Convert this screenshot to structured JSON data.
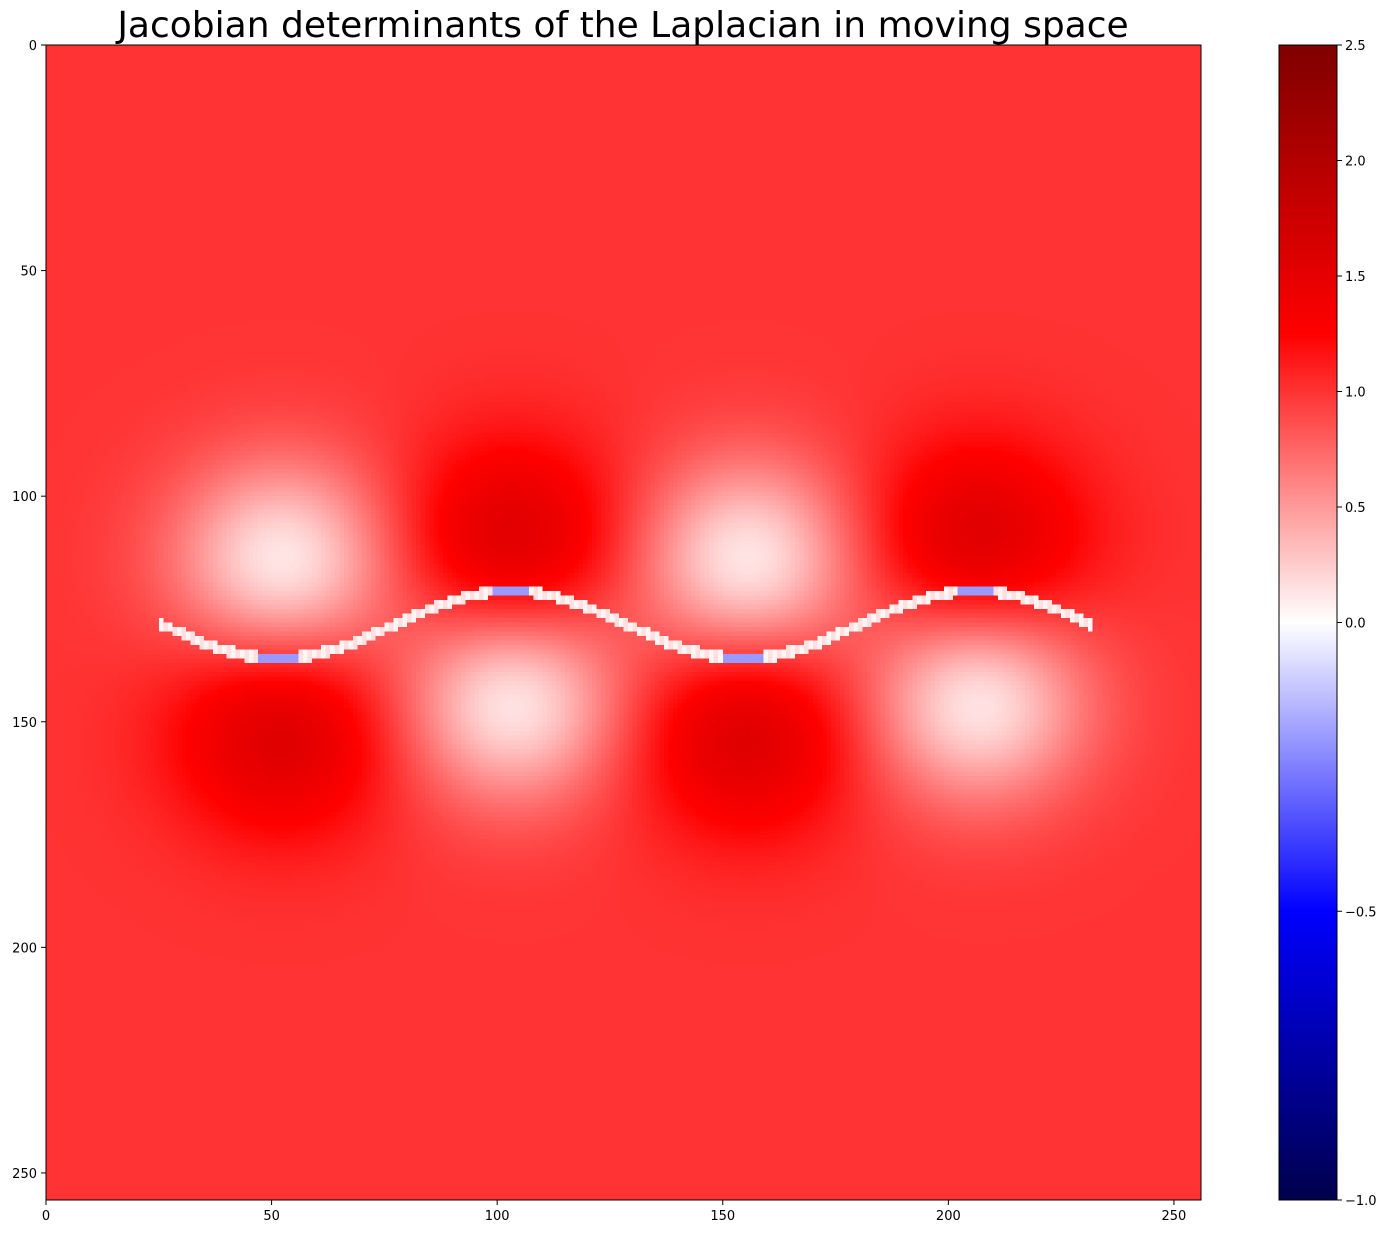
{
  "chart_data": {
    "type": "heatmap",
    "title": "Jacobian determinants of the Laplacian in moving space",
    "xlabel": "",
    "ylabel": "",
    "xlim": [
      0,
      256
    ],
    "ylim": [
      256,
      0
    ],
    "x_ticks": [
      0,
      50,
      100,
      150,
      200,
      250
    ],
    "y_ticks": [
      0,
      50,
      100,
      150,
      200,
      250
    ],
    "x_tick_labels": [
      "0",
      "50",
      "100",
      "150",
      "200",
      "250"
    ],
    "y_tick_labels": [
      "0",
      "50",
      "100",
      "150",
      "200",
      "250"
    ],
    "grid": false,
    "colormap": {
      "name": "seismic",
      "vmin": -1.0,
      "vcenter": 0.0,
      "vmax": 2.5,
      "stops": [
        {
          "value": -1.0,
          "color": "#00004c"
        },
        {
          "value": -0.5,
          "color": "#0000ff"
        },
        {
          "value": 0.0,
          "color": "#ffffff"
        },
        {
          "value": 1.25,
          "color": "#ff0000"
        },
        {
          "value": 2.5,
          "color": "#7f0000"
        }
      ]
    },
    "colorbar_ticks": [
      2.5,
      2.0,
      1.5,
      1.0,
      0.5,
      0.0,
      -0.5,
      -1.0
    ],
    "colorbar_tick_labels": [
      "2.5",
      "2.0",
      "1.5",
      "1.0",
      "0.5",
      "0.0",
      "−0.5",
      "−1.0"
    ],
    "field": {
      "background_value": 1.0,
      "boundary_curve": {
        "x_range": [
          25,
          231
        ],
        "center_row": 128,
        "amplitude_rows": 7.5,
        "period_cols": 103,
        "trough_cols": [
          51,
          154
        ],
        "crest_cols": [
          102,
          205
        ]
      },
      "lobes": [
        {
          "center": [
            52,
            152
          ],
          "peak_value": 1.6
        },
        {
          "center": [
            103,
            110
          ],
          "peak_value": 1.6
        },
        {
          "center": [
            155,
            152
          ],
          "peak_value": 1.6
        },
        {
          "center": [
            206,
            110
          ],
          "peak_value": 1.6
        },
        {
          "center": [
            52,
            114
          ],
          "peak_value": 0.1
        },
        {
          "center": [
            103,
            145
          ],
          "peak_value": 0.1
        },
        {
          "center": [
            155,
            114
          ],
          "peak_value": 0.1
        },
        {
          "center": [
            206,
            145
          ],
          "peak_value": 0.1
        }
      ],
      "boundary_min_value": -0.2
    }
  }
}
